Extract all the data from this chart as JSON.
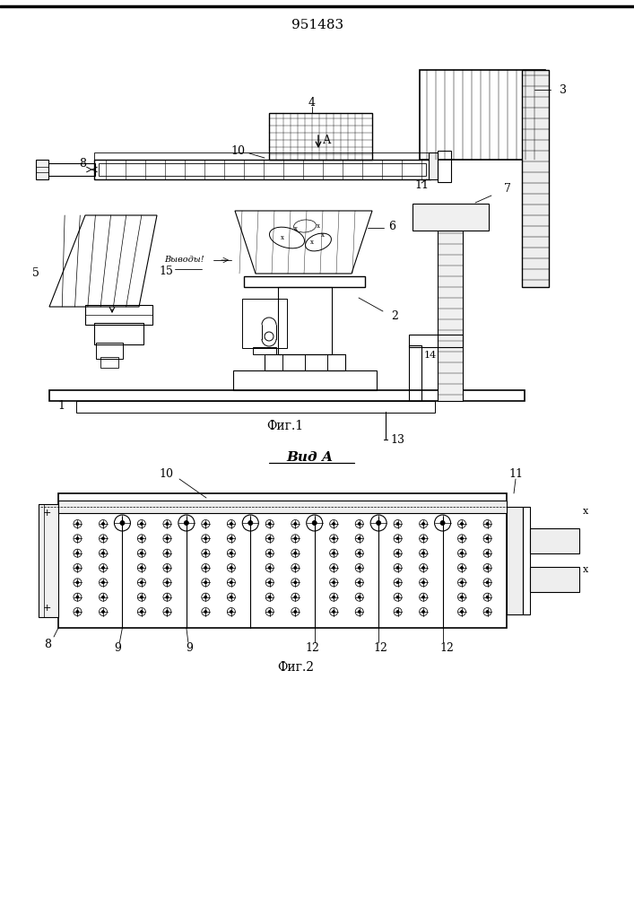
{
  "title": "951483",
  "fig1_label": "Фиг.1",
  "fig2_label": "Фиг.2",
  "vid_label": "Вид А",
  "vyvody_label": "Выводы!",
  "bg_color": "#ffffff",
  "lc": "#000000"
}
